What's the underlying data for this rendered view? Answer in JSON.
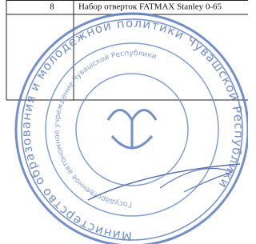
{
  "table": {
    "rows": [
      [
        "8",
        "Набор отверток FATMAX Stanley 0-65"
      ]
    ]
  },
  "stamp": {
    "outer_text": "Министерство образования и молодежной политики Чувашской Республики",
    "inner_text": "Государственное автономное учреждение Чувашской Республики"
  }
}
